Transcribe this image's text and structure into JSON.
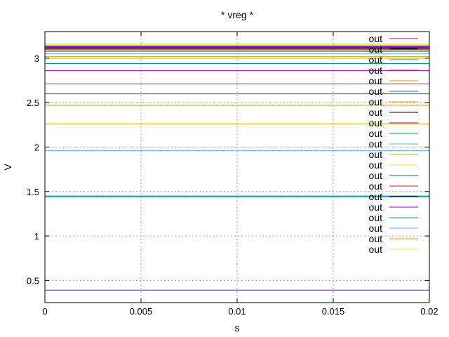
{
  "chart_data": {
    "type": "line",
    "title": "* vreg *",
    "xlabel": "s",
    "ylabel": "V",
    "xlim": [
      0,
      0.02
    ],
    "ylim": [
      0.25,
      3.3
    ],
    "xticks": [
      0,
      0.005,
      0.01,
      0.015,
      0.02
    ],
    "xtick_labels": [
      "0",
      "0.005",
      "0.01",
      "0.015",
      "0.02"
    ],
    "yticks": [
      0.5,
      1,
      1.5,
      2,
      2.5,
      3
    ],
    "ytick_labels": [
      "0.5",
      "1",
      "1.5",
      "2",
      "2.5",
      "3"
    ],
    "grid": true,
    "legend_position": "top-right",
    "series": [
      {
        "name": "out",
        "color": "#9400d3",
        "x": [
          0,
          0.02
        ],
        "y": [
          0.39,
          0.39
        ]
      },
      {
        "name": "out",
        "color": "#000000",
        "x": [
          0,
          0.02
        ],
        "y": [
          3.12,
          3.12
        ]
      },
      {
        "name": "out",
        "color": "#009e73",
        "x": [
          0,
          0.02
        ],
        "y": [
          1.45,
          1.45
        ]
      },
      {
        "name": "out",
        "color": "#e51e10",
        "x": [
          0,
          0.02
        ],
        "y": [
          2.71,
          2.71
        ]
      },
      {
        "name": "out",
        "color": "#c8a800",
        "x": [
          0,
          0.02
        ],
        "y": [
          2.26,
          2.26
        ]
      },
      {
        "name": "out",
        "color": "#0072b2",
        "x": [
          0,
          0.02
        ],
        "y": [
          2.6,
          2.6
        ]
      },
      {
        "name": "out",
        "color": "#e69f00",
        "x": [
          0,
          0.02
        ],
        "y": [
          2.47,
          2.47
        ]
      },
      {
        "name": "out",
        "color": "#000000",
        "x": [
          0,
          0.02
        ],
        "y": [
          3.08,
          3.08
        ]
      },
      {
        "name": "out",
        "color": "#9400d3",
        "x": [
          0,
          0.02
        ],
        "y": [
          2.86,
          2.86
        ]
      },
      {
        "name": "out",
        "color": "#009e73",
        "x": [
          0,
          0.02
        ],
        "y": [
          2.94,
          2.94
        ]
      },
      {
        "name": "out",
        "color": "#56b4e9",
        "x": [
          0,
          0.02
        ],
        "y": [
          1.96,
          1.96
        ]
      },
      {
        "name": "out",
        "color": "#e69f00",
        "x": [
          0,
          0.02
        ],
        "y": [
          3.02,
          3.02
        ]
      },
      {
        "name": "out",
        "color": "#f0e442",
        "x": [
          0,
          0.02
        ],
        "y": [
          3.15,
          3.15
        ]
      },
      {
        "name": "out",
        "color": "#0072b2",
        "x": [
          0,
          0.02
        ],
        "y": [
          1.44,
          1.44
        ]
      },
      {
        "name": "out",
        "color": "#e51e10",
        "x": [
          0,
          0.02
        ],
        "y": [
          3.1,
          3.1
        ]
      },
      {
        "name": "out",
        "color": "#000000",
        "x": [
          0,
          0.02
        ],
        "y": [
          3.11,
          3.11
        ]
      },
      {
        "name": "out",
        "color": "#9400d3",
        "x": [
          0,
          0.02
        ],
        "y": [
          3.13,
          3.13
        ]
      },
      {
        "name": "out",
        "color": "#009e73",
        "x": [
          0,
          0.02
        ],
        "y": [
          3.14,
          3.14
        ]
      },
      {
        "name": "out",
        "color": "#56b4e9",
        "x": [
          0,
          0.02
        ],
        "y": [
          3.05,
          3.05
        ]
      },
      {
        "name": "out",
        "color": "#e69f00",
        "x": [
          0,
          0.02
        ],
        "y": [
          3.0,
          3.0
        ]
      },
      {
        "name": "out",
        "color": "#f0e442",
        "x": [
          0,
          0.02
        ],
        "y": [
          3.16,
          3.16
        ]
      }
    ]
  }
}
